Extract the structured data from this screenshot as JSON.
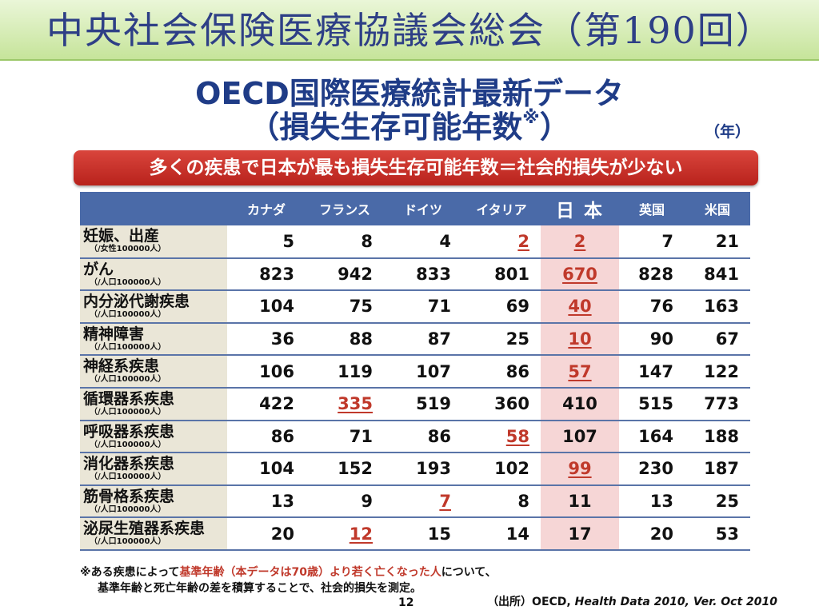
{
  "header": {
    "banner_text": "中央社会保険医療協議会総会（第190回）",
    "title_line1": "OECD国際医療統計最新データ",
    "title_line2": "（損失生存可能年数",
    "title_mark": "※",
    "title_close": "）",
    "unit": "（年）"
  },
  "highlight": {
    "text": "多くの疾患で日本が最も損失生存可能年数＝社会的損失が少ない"
  },
  "table": {
    "columns": [
      "カナダ",
      "フランス",
      "ドイツ",
      "イタリア",
      "日 本",
      "英国",
      "米国"
    ],
    "rows": [
      {
        "label": "妊娠、出産",
        "sub": "（/女性100000人）",
        "values": [
          "5",
          "8",
          "4",
          "2",
          "2",
          "7",
          "21"
        ],
        "highlight": [
          3,
          4
        ]
      },
      {
        "label": "がん",
        "sub": "（/人口100000人）",
        "values": [
          "823",
          "942",
          "833",
          "801",
          "670",
          "828",
          "841"
        ],
        "highlight": [
          4
        ]
      },
      {
        "label": "内分泌代謝疾患",
        "sub": "（/人口100000人）",
        "values": [
          "104",
          "75",
          "71",
          "69",
          "40",
          "76",
          "163"
        ],
        "highlight": [
          4
        ]
      },
      {
        "label": "精神障害",
        "sub": "（/人口100000人）",
        "values": [
          "36",
          "88",
          "87",
          "25",
          "10",
          "90",
          "67"
        ],
        "highlight": [
          4
        ]
      },
      {
        "label": "神経系疾患",
        "sub": "（/人口100000人）",
        "values": [
          "106",
          "119",
          "107",
          "86",
          "57",
          "147",
          "122"
        ],
        "highlight": [
          4
        ]
      },
      {
        "label": "循環器系疾患",
        "sub": "（/人口100000人）",
        "values": [
          "422",
          "335",
          "519",
          "360",
          "410",
          "515",
          "773"
        ],
        "highlight": [
          1
        ]
      },
      {
        "label": "呼吸器系疾患",
        "sub": "（/人口100000人）",
        "values": [
          "86",
          "71",
          "86",
          "58",
          "107",
          "164",
          "188"
        ],
        "highlight": [
          3
        ]
      },
      {
        "label": "消化器系疾患",
        "sub": "（/人口100000人）",
        "values": [
          "104",
          "152",
          "193",
          "102",
          "99",
          "230",
          "187"
        ],
        "highlight": [
          4
        ]
      },
      {
        "label": "筋骨格系疾患",
        "sub": "（/人口100000人）",
        "values": [
          "13",
          "9",
          "7",
          "8",
          "11",
          "13",
          "25"
        ],
        "highlight": [
          2
        ]
      },
      {
        "label": "泌尿生殖器系疾患",
        "sub": "（/人口100000人）",
        "values": [
          "20",
          "12",
          "15",
          "14",
          "17",
          "20",
          "53"
        ],
        "highlight": [
          1
        ]
      }
    ]
  },
  "footnote": {
    "prefix": "※ある疾患によって",
    "red": "基準年齢（本データは70歳）より若く亡くなった人",
    "suffix": "について、",
    "line2": "基準年齢と死亡年齢の差を積算することで、社会的損失を測定。"
  },
  "page_number": "12",
  "source": {
    "prefix": "（出所）OECD, ",
    "italic": "Health Data 2010, Ver. Oct 2010"
  },
  "colors": {
    "accent_blue": "#1f3c87",
    "table_header": "#4a6aa8",
    "japan_column": "#f6d6d6",
    "highlight_red": "#c0392b",
    "banner_red": "#b8221c",
    "label_column": "#eae6d7"
  }
}
